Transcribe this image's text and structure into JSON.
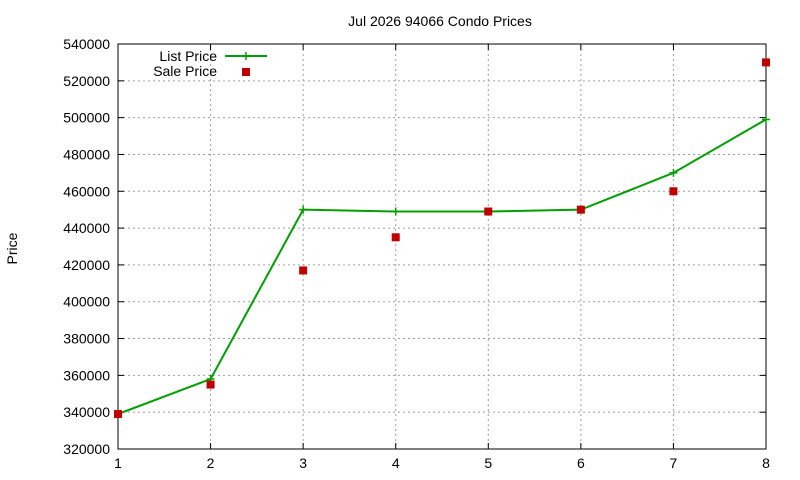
{
  "chart_data": {
    "type": "line",
    "title": "Jul 2026 94066 Condo Prices",
    "xlabel": "",
    "ylabel": "Price",
    "x": [
      1,
      2,
      3,
      4,
      5,
      6,
      7,
      8
    ],
    "xlim": [
      1,
      8
    ],
    "ylim": [
      320000,
      540000
    ],
    "x_ticks": [
      1,
      2,
      3,
      4,
      5,
      6,
      7,
      8
    ],
    "y_ticks": [
      320000,
      340000,
      360000,
      380000,
      400000,
      420000,
      440000,
      460000,
      480000,
      500000,
      520000,
      540000
    ],
    "grid": true,
    "legend_position": "top-left",
    "series": [
      {
        "name": "List Price",
        "style": "line+points",
        "marker": "plus",
        "color": "#00a000",
        "values": [
          339000,
          358000,
          450000,
          449000,
          449000,
          450000,
          470000,
          499000
        ]
      },
      {
        "name": "Sale Price",
        "style": "points",
        "marker": "square",
        "color": "#c00000",
        "values": [
          339000,
          355000,
          417000,
          435000,
          449000,
          450000,
          460000,
          530000
        ]
      }
    ]
  }
}
